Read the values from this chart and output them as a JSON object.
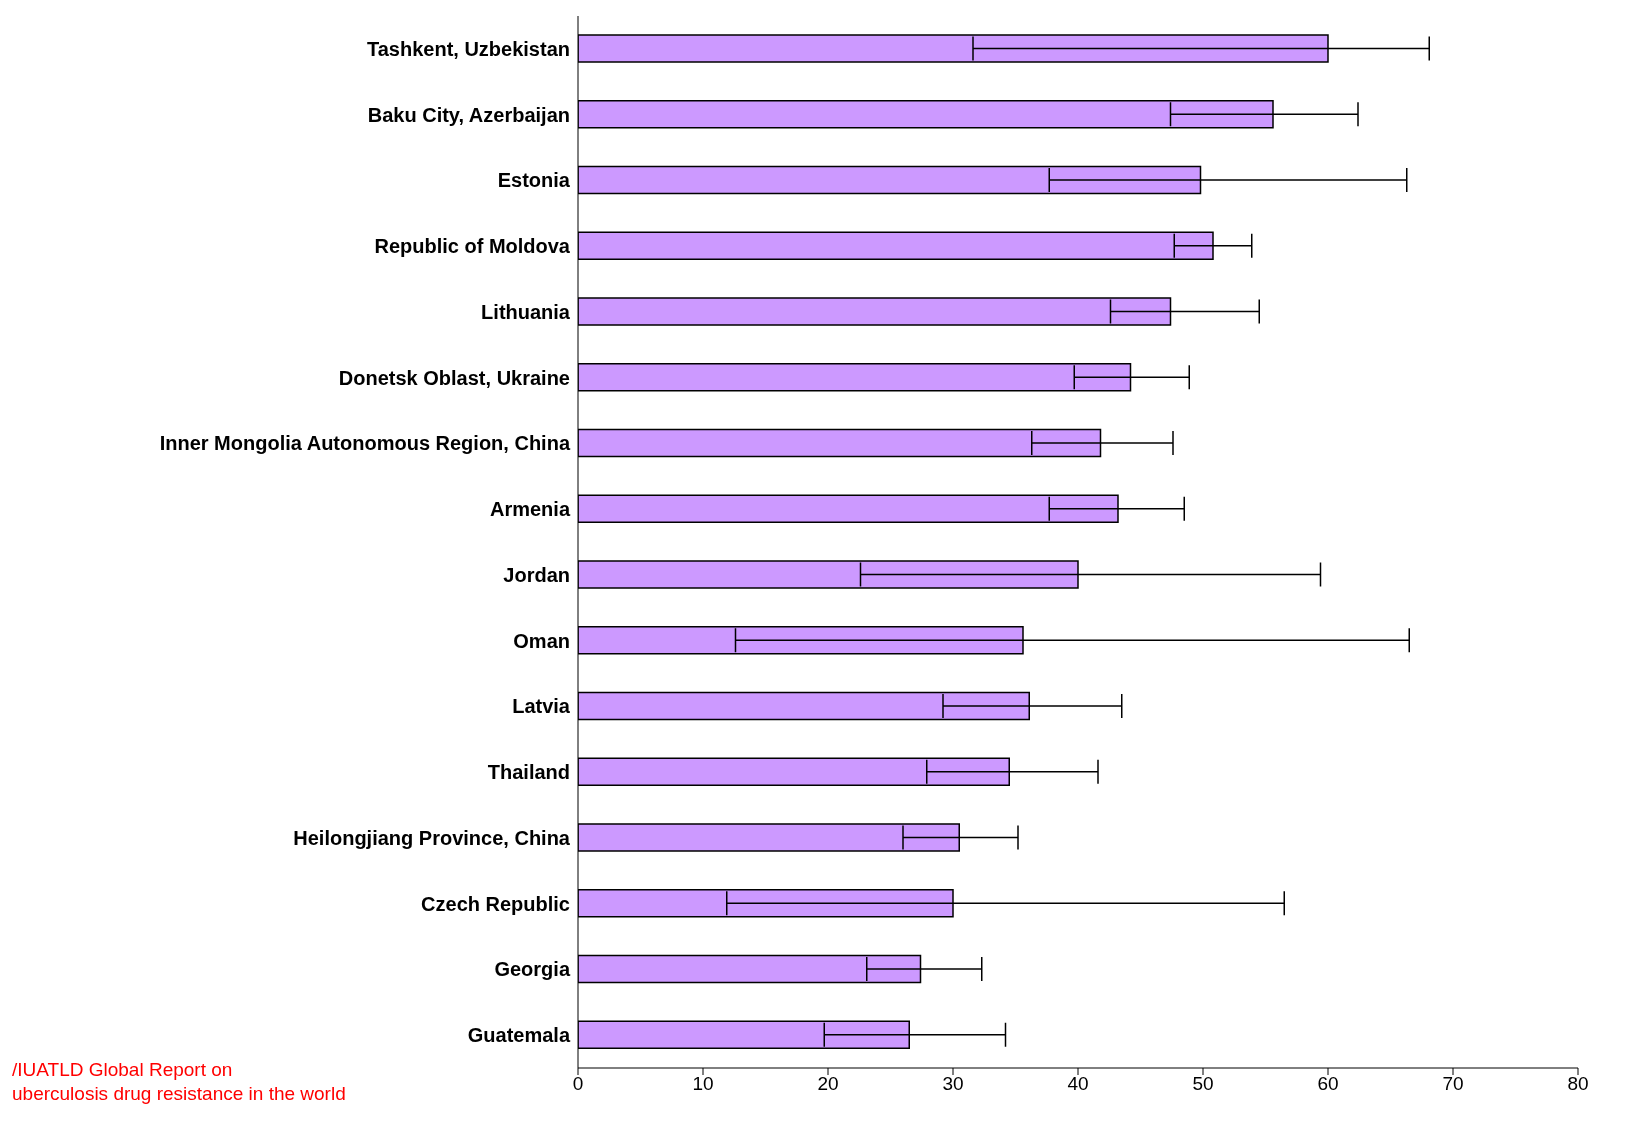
{
  "chart_data": {
    "type": "bar",
    "orientation": "horizontal",
    "categories": [
      "Tashkent, Uzbekistan",
      "Baku City, Azerbaijan",
      "Estonia",
      "Republic of Moldova",
      "Lithuania",
      "Donetsk Oblast, Ukraine",
      "Inner Mongolia Autonomous Region, China",
      "Armenia",
      "Jordan",
      "Oman",
      "Latvia",
      "Thailand",
      "Heilongjiang Province, China",
      "Czech Republic",
      "Georgia",
      "Guatemala"
    ],
    "values": [
      60.0,
      55.6,
      49.8,
      50.8,
      47.4,
      44.2,
      41.8,
      43.2,
      40.0,
      35.6,
      36.1,
      34.5,
      30.5,
      30.0,
      27.4,
      26.5
    ],
    "errors": [
      [
        31.6,
        68.1
      ],
      [
        47.4,
        62.4
      ],
      [
        37.7,
        66.3
      ],
      [
        47.7,
        53.9
      ],
      [
        42.6,
        54.5
      ],
      [
        39.7,
        48.9
      ],
      [
        36.3,
        47.6
      ],
      [
        37.7,
        48.5
      ],
      [
        22.6,
        59.4
      ],
      [
        12.6,
        66.5
      ],
      [
        29.2,
        43.5
      ],
      [
        27.9,
        41.6
      ],
      [
        26.0,
        35.2
      ],
      [
        11.9,
        56.5
      ],
      [
        23.1,
        32.3
      ],
      [
        19.7,
        34.2
      ]
    ],
    "color": "#cc99ff",
    "xlim": [
      0,
      80
    ],
    "xticks": [
      0,
      10,
      20,
      30,
      40,
      50,
      60,
      70,
      80
    ],
    "grid": false,
    "legend": false,
    "annotations": [
      "/IUATLD Global Report on\nuberculosis drug resistance in the world"
    ]
  }
}
